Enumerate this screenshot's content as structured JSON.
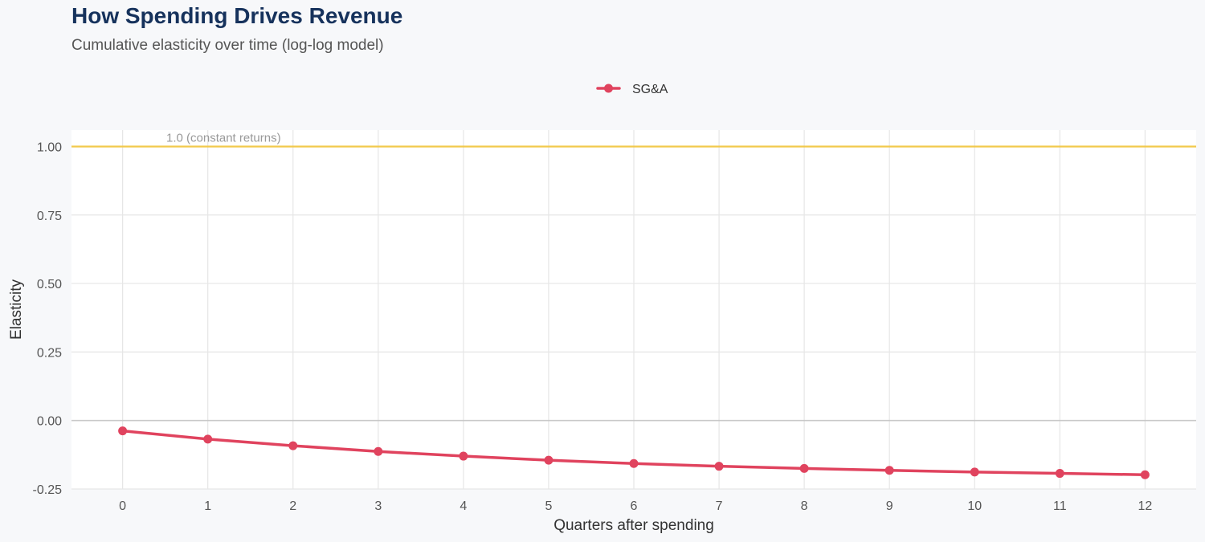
{
  "chart_data": {
    "type": "line",
    "title": "How Spending Drives Revenue",
    "subtitle": "Cumulative elasticity over time (log-log model)",
    "xlabel": "Quarters after spending",
    "ylabel": "Elasticity",
    "x": [
      0,
      1,
      2,
      3,
      4,
      5,
      6,
      7,
      8,
      9,
      10,
      11,
      12
    ],
    "x_tick_labels": [
      "0",
      "1",
      "2",
      "3",
      "4",
      "5",
      "6",
      "7",
      "8",
      "9",
      "10",
      "11",
      "12"
    ],
    "y_ticks": [
      -0.25,
      0,
      0.25,
      0.5,
      0.75,
      1.0
    ],
    "y_tick_labels": [
      "-0.25",
      "0.00",
      "0.25",
      "0.50",
      "0.75",
      "1.00"
    ],
    "xlim": [
      -0.6,
      12.6
    ],
    "ylim": [
      -0.25,
      1.06
    ],
    "grid": true,
    "legend_position": "top-center",
    "series": [
      {
        "name": "SG&A",
        "color": "#e0435e",
        "values": [
          -0.038,
          -0.068,
          -0.092,
          -0.113,
          -0.13,
          -0.145,
          -0.157,
          -0.167,
          -0.175,
          -0.182,
          -0.188,
          -0.193,
          -0.198
        ]
      }
    ],
    "reference_line": {
      "y": 1.0,
      "label": "1.0 (constant returns)",
      "color": "#f2c94c"
    },
    "zero_line_color": "#c8c8c8",
    "grid_color": "#e6e6e6",
    "panel_background": "#ffffff"
  }
}
